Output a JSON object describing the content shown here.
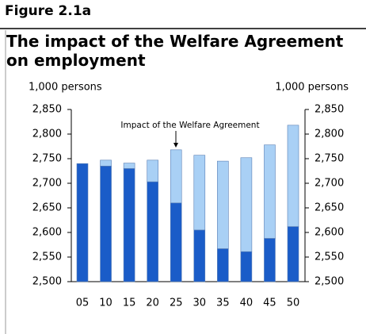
{
  "figure_label": "Figure 2.1a",
  "chart_data": {
    "type": "stacked_bar",
    "title": "The impact of the Welfare Agreement on employment",
    "y_label": "1,000 persons",
    "y2_label": "1,000 persons",
    "annotation": "Impact of the Welfare Agreement",
    "categories": [
      "05",
      "10",
      "15",
      "20",
      "25",
      "30",
      "35",
      "40",
      "45",
      "50"
    ],
    "series": [
      {
        "color": "#1a5cc8",
        "values": [
          2740,
          2735,
          2730,
          2703,
          2660,
          2605,
          2567,
          2561,
          2588,
          2612
        ]
      },
      {
        "color": "#a9d0f5",
        "values": [
          0,
          12,
          11,
          44,
          108,
          152,
          178,
          191,
          190,
          206
        ]
      }
    ],
    "ylim": [
      2500,
      2850
    ],
    "yticks": [
      {
        "value": 2500,
        "label": "2,500"
      },
      {
        "value": 2550,
        "label": "2,550"
      },
      {
        "value": 2600,
        "label": "2,600"
      },
      {
        "value": 2650,
        "label": "2,650"
      },
      {
        "value": 2700,
        "label": "2,700"
      },
      {
        "value": 2750,
        "label": "2,750"
      },
      {
        "value": 2800,
        "label": "2,800"
      },
      {
        "value": 2850,
        "label": "2,850"
      }
    ],
    "y2lim": [
      2500,
      2850
    ],
    "y2ticks": [
      {
        "value": 2500,
        "label": "2,500"
      },
      {
        "value": 2550,
        "label": "2,550"
      },
      {
        "value": 2600,
        "label": "2,600"
      },
      {
        "value": 2650,
        "label": "2,650"
      },
      {
        "value": 2700,
        "label": "2,700"
      },
      {
        "value": 2750,
        "label": "2,750"
      },
      {
        "value": 2800,
        "label": "2,800"
      },
      {
        "value": 2850,
        "label": "2,850"
      }
    ],
    "grid": false
  }
}
